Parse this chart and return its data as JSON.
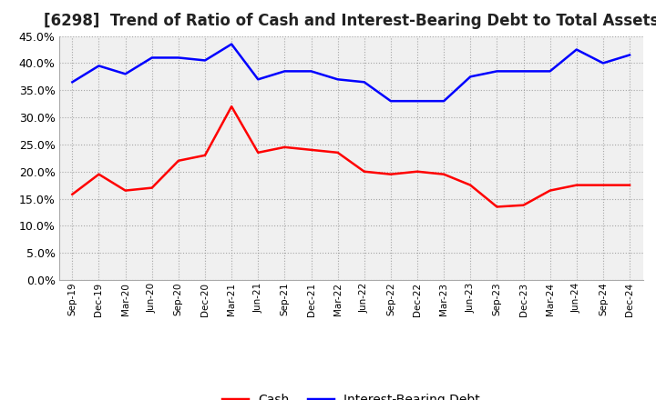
{
  "title": "[6298]  Trend of Ratio of Cash and Interest-Bearing Debt to Total Assets",
  "x_labels": [
    "Sep-19",
    "Dec-19",
    "Mar-20",
    "Jun-20",
    "Sep-20",
    "Dec-20",
    "Mar-21",
    "Jun-21",
    "Sep-21",
    "Dec-21",
    "Mar-22",
    "Jun-22",
    "Sep-22",
    "Dec-22",
    "Mar-23",
    "Jun-23",
    "Sep-23",
    "Dec-23",
    "Mar-24",
    "Jun-24",
    "Sep-24",
    "Dec-24"
  ],
  "cash": [
    15.8,
    19.5,
    16.5,
    17.0,
    22.0,
    23.0,
    32.0,
    23.5,
    24.5,
    24.0,
    23.5,
    20.0,
    19.5,
    20.0,
    19.5,
    17.5,
    13.5,
    13.8,
    16.5,
    17.5,
    17.5,
    17.5
  ],
  "interest_bearing_debt": [
    36.5,
    39.5,
    38.0,
    41.0,
    41.0,
    40.5,
    43.5,
    37.0,
    38.5,
    38.5,
    37.0,
    36.5,
    33.0,
    33.0,
    33.0,
    37.5,
    38.5,
    38.5,
    38.5,
    42.5,
    40.0,
    41.5
  ],
  "cash_color": "#ff0000",
  "debt_color": "#0000ff",
  "background_color": "#ffffff",
  "plot_bg_color": "#f0f0f0",
  "grid_color": "#888888",
  "ylim_max": 45,
  "yticks": [
    0,
    5,
    10,
    15,
    20,
    25,
    30,
    35,
    40,
    45
  ],
  "legend_cash": "Cash",
  "legend_debt": "Interest-Bearing Debt",
  "title_fontsize": 12
}
